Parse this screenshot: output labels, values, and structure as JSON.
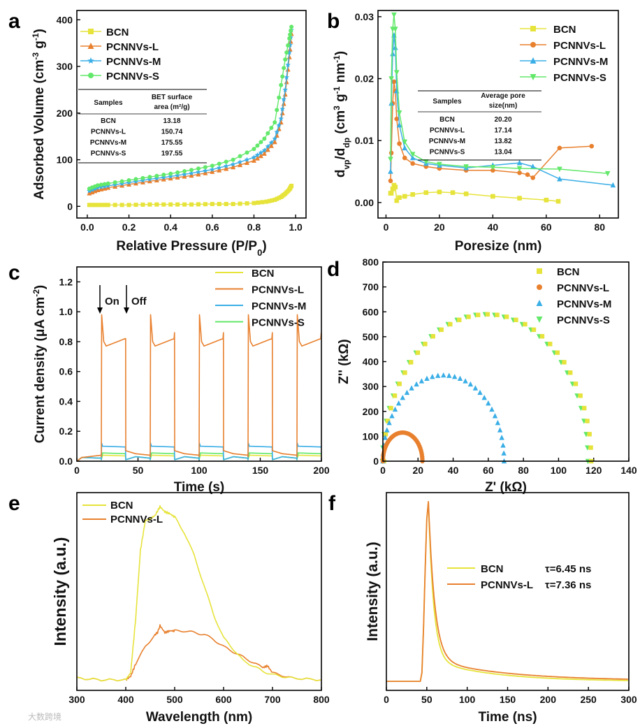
{
  "watermark": "大数跨境",
  "colors": {
    "BCN": "#e6e33a",
    "PCNNVs-L": "#e8802e",
    "PCNNVs-M": "#3aaee6",
    "PCNNVs-S": "#62e86a"
  },
  "chart_data": [
    {
      "panel": "a",
      "type": "line",
      "xlabel": "Relative Pressure (P/P0)",
      "ylabel": "Adsorbed Volume (cm3 g-1)",
      "xlim": [
        -0.05,
        1.05
      ],
      "ylim": [
        -25,
        420
      ],
      "xticks": [
        0.0,
        0.2,
        0.4,
        0.6,
        0.8,
        1.0
      ],
      "yticks": [
        0,
        100,
        200,
        300,
        400
      ],
      "legend": [
        "BCN",
        "PCNNVs-L",
        "PCNNVs-M",
        "PCNNVs-S"
      ],
      "series": [
        {
          "name": "BCN",
          "marker": "square",
          "x": [
            0.01,
            0.05,
            0.1,
            0.2,
            0.3,
            0.4,
            0.5,
            0.6,
            0.7,
            0.8,
            0.86,
            0.9,
            0.93,
            0.95,
            0.97,
            0.98
          ],
          "y": [
            3,
            3,
            3,
            3,
            4,
            4,
            4,
            5,
            5,
            7,
            10,
            14,
            20,
            27,
            36,
            44
          ]
        },
        {
          "name": "PCNNVs-L",
          "marker": "triangle",
          "x": [
            0.01,
            0.05,
            0.1,
            0.2,
            0.3,
            0.4,
            0.5,
            0.6,
            0.7,
            0.8,
            0.85,
            0.9,
            0.93,
            0.95,
            0.97,
            0.98
          ],
          "y": [
            28,
            35,
            40,
            47,
            54,
            60,
            66,
            74,
            84,
            98,
            113,
            138,
            180,
            240,
            320,
            370
          ]
        },
        {
          "name": "PCNNVs-M",
          "marker": "star",
          "x": [
            0.01,
            0.05,
            0.1,
            0.2,
            0.3,
            0.4,
            0.5,
            0.6,
            0.7,
            0.8,
            0.85,
            0.9,
            0.93,
            0.95,
            0.97,
            0.98
          ],
          "y": [
            33,
            40,
            44,
            51,
            58,
            64,
            71,
            79,
            90,
            105,
            120,
            145,
            188,
            250,
            330,
            378
          ]
        },
        {
          "name": "PCNNVs-S",
          "marker": "circle",
          "x": [
            0.01,
            0.05,
            0.1,
            0.2,
            0.3,
            0.4,
            0.5,
            0.6,
            0.7,
            0.8,
            0.85,
            0.9,
            0.93,
            0.95,
            0.97,
            0.98
          ],
          "y": [
            38,
            45,
            49,
            56,
            63,
            70,
            78,
            87,
            100,
            123,
            145,
            180,
            260,
            315,
            360,
            385
          ]
        }
      ],
      "table": {
        "headers": [
          "Samples",
          "BET surface",
          "area (m²/g)"
        ],
        "rows": [
          [
            "BCN",
            "13.18"
          ],
          [
            "PCNNVs-L",
            "150.74"
          ],
          [
            "PCNNVs-M",
            "175.55"
          ],
          [
            "PCNNVs-S",
            "197.55"
          ]
        ]
      }
    },
    {
      "panel": "b",
      "type": "line",
      "xlabel": "Poresize (nm)",
      "ylabel": "dvp/ddp (cm3 g-1 nm-1)",
      "xlim": [
        -3,
        87
      ],
      "ylim": [
        -0.0025,
        0.031
      ],
      "xticks": [
        0,
        20,
        40,
        60,
        80
      ],
      "yticks": [
        0.0,
        0.01,
        0.02,
        0.03
      ],
      "ytick_labels": [
        "0.00",
        "0.01",
        "0.02",
        "0.03"
      ],
      "legend": [
        "BCN",
        "PCNNVs-L",
        "PCNNVs-M",
        "PCNNVs-S"
      ],
      "series": [
        {
          "name": "BCN",
          "marker": "square",
          "x": [
            1.7,
            2.0,
            2.5,
            3.0,
            3.5,
            4.0,
            5.0,
            7.0,
            10,
            15,
            20,
            25,
            30,
            40,
            50,
            60,
            64.5
          ],
          "y": [
            0.0015,
            0.0015,
            0.0022,
            0.0028,
            0.0025,
            0.0003,
            0.0008,
            0.001,
            0.0013,
            0.0016,
            0.0017,
            0.0016,
            0.0014,
            0.001,
            0.0007,
            0.0004,
            0.0002
          ]
        },
        {
          "name": "PCNNVs-L",
          "marker": "circle",
          "x": [
            1.7,
            2.0,
            2.5,
            3.0,
            3.5,
            4.0,
            5.0,
            7.0,
            10,
            15,
            20,
            30,
            40,
            50,
            53,
            55,
            65,
            77
          ],
          "y": [
            0.0035,
            0.008,
            0.016,
            0.0195,
            0.018,
            0.0135,
            0.0095,
            0.0072,
            0.0063,
            0.0058,
            0.0055,
            0.0052,
            0.0052,
            0.0048,
            0.0045,
            0.004,
            0.0088,
            0.0091
          ]
        },
        {
          "name": "PCNNVs-M",
          "marker": "triangle",
          "x": [
            1.7,
            2.0,
            2.5,
            3.0,
            3.5,
            4.0,
            5.0,
            7.0,
            10,
            15,
            20,
            30,
            40,
            50,
            55,
            65,
            85
          ],
          "y": [
            0.005,
            0.016,
            0.024,
            0.027,
            0.025,
            0.018,
            0.0125,
            0.0088,
            0.0072,
            0.0063,
            0.006,
            0.0056,
            0.006,
            0.0064,
            0.0058,
            0.0038,
            0.0028
          ]
        },
        {
          "name": "PCNNVs-S",
          "marker": "down-triangle",
          "x": [
            1.7,
            2.0,
            2.5,
            3.0,
            3.5,
            4.0,
            5.0,
            7.0,
            10,
            15,
            20,
            30,
            40,
            50,
            65,
            83
          ],
          "y": [
            0.007,
            0.02,
            0.028,
            0.0303,
            0.028,
            0.021,
            0.0145,
            0.0098,
            0.0078,
            0.0066,
            0.0062,
            0.0058,
            0.0057,
            0.0055,
            0.0054,
            0.0047
          ]
        }
      ],
      "table": {
        "headers": [
          "Samples",
          "Average pore",
          "size(nm)"
        ],
        "rows": [
          [
            "BCN",
            "20.20"
          ],
          [
            "PCNNVs-L",
            "17.14"
          ],
          [
            "PCNNVs-M",
            "13.82"
          ],
          [
            "PCNNVs-S",
            "13.04"
          ]
        ]
      }
    },
    {
      "panel": "c",
      "type": "line",
      "xlabel": "Time (s)",
      "ylabel": "Current density (μA cm-2)",
      "xlim": [
        0,
        200
      ],
      "ylim": [
        0,
        1.3
      ],
      "xticks": [
        0,
        50,
        100,
        150,
        200
      ],
      "yticks": [
        0.0,
        0.2,
        0.4,
        0.6,
        0.8,
        1.0,
        1.2
      ],
      "ytick_labels": [
        "0.0",
        "0.2",
        "0.4",
        "0.6",
        "0.8",
        "1.0",
        "1.2"
      ],
      "legend": [
        "BCN",
        "PCNNVs-L",
        "PCNNVs-M",
        "PCNNVs-S"
      ],
      "light_cycles": [
        [
          20,
          40
        ],
        [
          60,
          80
        ],
        [
          100,
          120
        ],
        [
          140,
          160
        ],
        [
          180,
          200
        ]
      ],
      "on_off_labels": [
        "On",
        "Off"
      ],
      "series": [
        {
          "name": "BCN",
          "dark": 0.01,
          "on_level": 0.04
        },
        {
          "name": "PCNNVs-L",
          "dark": 0.03,
          "on_level": 0.82,
          "spike": 0.98
        },
        {
          "name": "PCNNVs-M",
          "dark": 0.01,
          "on_level": 0.1,
          "spike": 0.12
        },
        {
          "name": "PCNNVs-S",
          "dark": 0.01,
          "on_level": 0.055
        }
      ]
    },
    {
      "panel": "d",
      "type": "scatter",
      "xlabel": "Z' (kΩ)",
      "ylabel": "Z'' (kΩ)",
      "xlim": [
        0,
        140
      ],
      "ylim": [
        0,
        800
      ],
      "xticks": [
        0,
        20,
        40,
        60,
        80,
        100,
        120,
        140
      ],
      "yticks": [
        0,
        100,
        200,
        300,
        400,
        500,
        600,
        700,
        800
      ],
      "legend": [
        "BCN",
        "PCNNVs-L",
        "PCNNVs-M",
        "PCNNVs-S"
      ],
      "series": [
        {
          "name": "BCN",
          "marker": "square",
          "semicircle_diameter": 118,
          "peak": 590
        },
        {
          "name": "PCNNVs-L",
          "marker": "circle",
          "semicircle_diameter": 22.5,
          "peak": 115
        },
        {
          "name": "PCNNVs-M",
          "marker": "triangle",
          "semicircle_diameter": 69,
          "peak": 345
        },
        {
          "name": "PCNNVs-S",
          "marker": "down-triangle",
          "semicircle_diameter": 117,
          "peak": 590
        }
      ]
    },
    {
      "panel": "e",
      "type": "line",
      "xlabel": "Wavelength (nm)",
      "ylabel": "Intensity (a.u.)",
      "xlim": [
        300,
        800
      ],
      "xticks": [
        300,
        400,
        500,
        600,
        700,
        800
      ],
      "legend": [
        "BCN",
        "PCNNVs-L"
      ],
      "series": [
        {
          "name": "BCN",
          "x": [
            300,
            350,
            400,
            410,
            420,
            430,
            440,
            450,
            460,
            470,
            480,
            490,
            500,
            520,
            540,
            560,
            580,
            600,
            640,
            680,
            700,
            740,
            800
          ],
          "y": [
            0.02,
            0.01,
            0.01,
            0.05,
            0.35,
            0.75,
            0.92,
            0.93,
            0.95,
            1.0,
            0.97,
            0.96,
            0.94,
            0.85,
            0.72,
            0.55,
            0.38,
            0.25,
            0.12,
            0.06,
            0.04,
            0.02,
            0.01
          ]
        },
        {
          "name": "PCNNVs-L",
          "x": [
            300,
            350,
            400,
            410,
            420,
            440,
            460,
            465,
            470,
            480,
            490,
            500,
            520,
            540,
            560,
            580,
            600,
            640,
            680,
            690,
            700,
            740,
            800
          ],
          "y": [
            0.02,
            0.01,
            0.01,
            0.03,
            0.1,
            0.2,
            0.27,
            0.28,
            0.32,
            0.28,
            0.29,
            0.29,
            0.29,
            0.28,
            0.27,
            0.24,
            0.2,
            0.14,
            0.08,
            0.09,
            0.05,
            0.02,
            0.01
          ]
        }
      ]
    },
    {
      "panel": "f",
      "type": "line",
      "xlabel": "Time (ns)",
      "ylabel": "Intensity (a.u.)",
      "xlim": [
        0,
        300
      ],
      "xticks": [
        0,
        50,
        100,
        150,
        200,
        250,
        300
      ],
      "legend": [
        "BCN",
        "PCNNVs-L"
      ],
      "annotations": [
        "τ=6.45 ns",
        "τ=7.36 ns"
      ],
      "series": [
        {
          "name": "BCN",
          "tau": 6.45
        },
        {
          "name": "PCNNVs-L",
          "tau": 7.36
        }
      ]
    }
  ]
}
